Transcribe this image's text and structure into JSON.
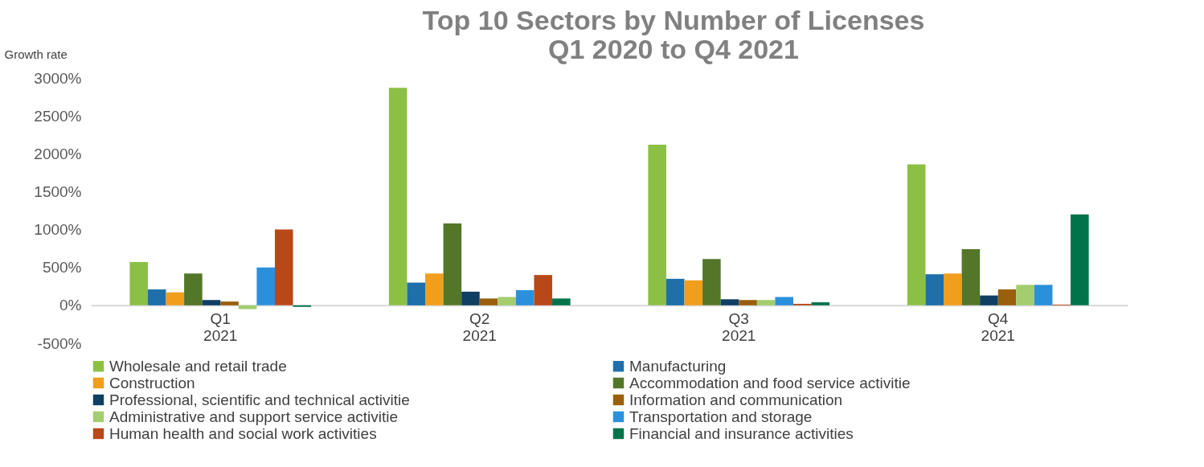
{
  "chart_data": {
    "type": "bar",
    "title": "Top 10 Sectors by Number of Licenses",
    "subtitle": "Q1 2020 to Q4 2021",
    "ylabel": "Growth rate",
    "categories": [
      "Q1 2021",
      "Q2 2021",
      "Q3 2021",
      "Q4 2021"
    ],
    "ylim": [
      -500,
      3000
    ],
    "yticks": [
      {
        "value": -500,
        "label": "-500%"
      },
      {
        "value": 0,
        "label": "0%"
      },
      {
        "value": 500,
        "label": "500%"
      },
      {
        "value": 1000,
        "label": "1000%"
      },
      {
        "value": 1500,
        "label": "1500%"
      },
      {
        "value": 2000,
        "label": "2000%"
      },
      {
        "value": 2500,
        "label": "2500%"
      },
      {
        "value": 3000,
        "label": "3000%"
      }
    ],
    "grid": false,
    "legend": "bottom",
    "series": [
      {
        "name": "Wholesale and retail trade",
        "color": "#8bc045",
        "values": [
          570,
          2870,
          2120,
          1860
        ]
      },
      {
        "name": "Manufacturing",
        "color": "#1f6fab",
        "values": [
          210,
          300,
          350,
          410
        ]
      },
      {
        "name": "Construction",
        "color": "#f09e1c",
        "values": [
          170,
          420,
          330,
          420
        ]
      },
      {
        "name": "Accommodation and food service activitie",
        "color": "#537628",
        "values": [
          420,
          1080,
          610,
          740
        ]
      },
      {
        "name": "Professional, scientific and technical activitie",
        "color": "#0f3f63",
        "values": [
          70,
          180,
          80,
          130
        ]
      },
      {
        "name": "Information and communication",
        "color": "#9a5f0c",
        "values": [
          50,
          90,
          70,
          210
        ]
      },
      {
        "name": "Administrative and support service activitie",
        "color": "#a3cd6e",
        "values": [
          -50,
          110,
          70,
          270
        ]
      },
      {
        "name": "Transportation and storage",
        "color": "#2b90db",
        "values": [
          500,
          200,
          110,
          270
        ]
      },
      {
        "name": "Human health and social work activities",
        "color": "#b94818",
        "values": [
          1000,
          400,
          20,
          10
        ]
      },
      {
        "name": "Financial and insurance activities",
        "color": "#00734a",
        "values": [
          -20,
          90,
          40,
          1200
        ]
      }
    ]
  }
}
